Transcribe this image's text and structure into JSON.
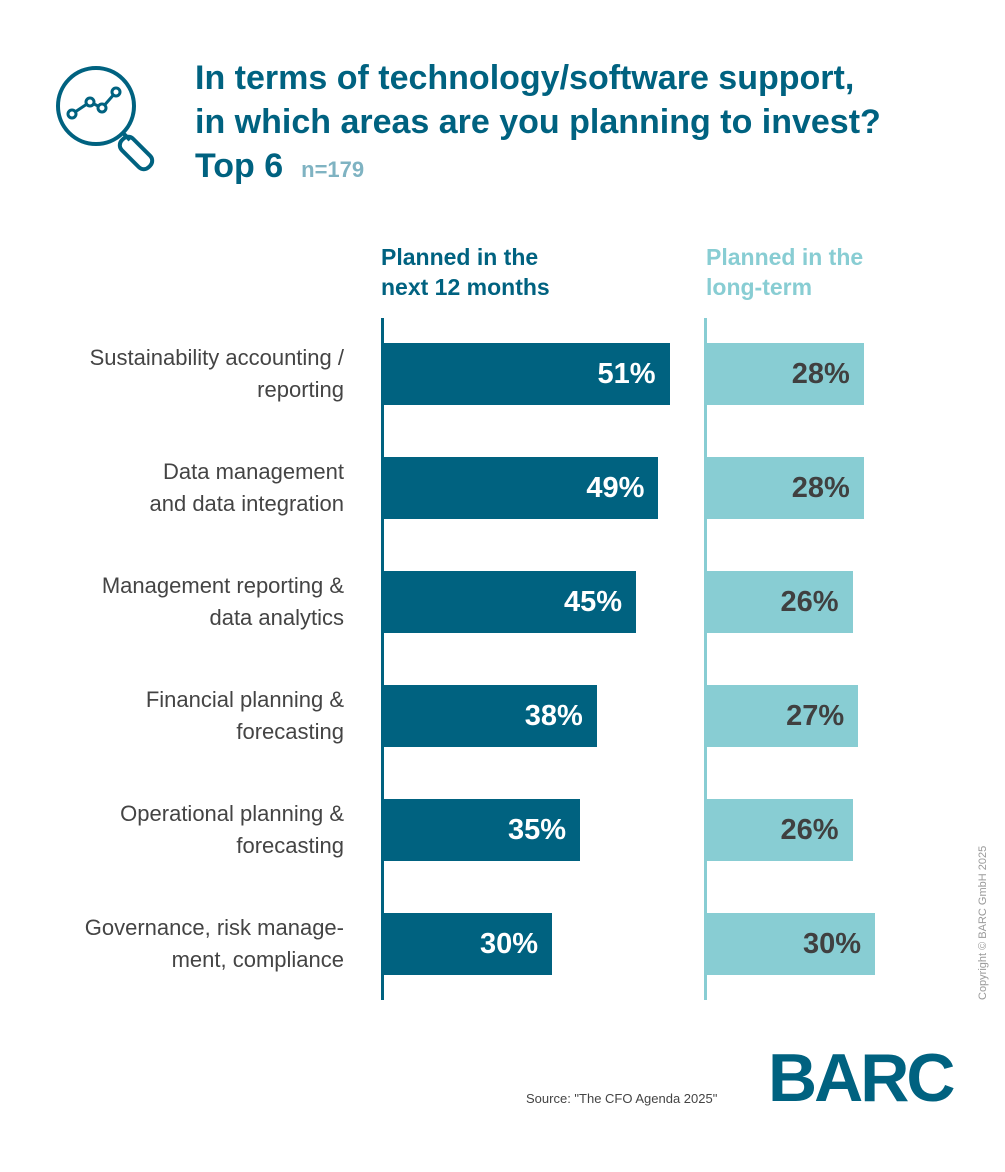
{
  "title": {
    "line1": "In terms of technology/software support,",
    "line2": "in which areas are you planning to invest?",
    "line3": "Top 6",
    "sample": "n=179"
  },
  "icon": "magnifier-trend-icon",
  "colors": {
    "primary": "#006280",
    "secondary": "#88cdd3"
  },
  "chart_data": {
    "type": "bar",
    "orientation": "horizontal",
    "categories": [
      "Sustainability accounting /\nreporting",
      "Data management\nand data integration",
      "Management reporting &\ndata analytics",
      "Financial planning &\nforecasting",
      "Operational planning &\nforecasting",
      "Governance, risk manage-\nment, compliance"
    ],
    "series": [
      {
        "name": "Planned in the\nnext 12 months",
        "values": [
          51,
          49,
          45,
          38,
          35,
          30
        ],
        "labels": [
          "51%",
          "49%",
          "45%",
          "38%",
          "35%",
          "30%"
        ]
      },
      {
        "name": "Planned in the\nlong-term",
        "values": [
          28,
          28,
          26,
          27,
          26,
          30
        ],
        "labels": [
          "28%",
          "28%",
          "26%",
          "27%",
          "26%",
          "30%"
        ]
      }
    ],
    "unit": "%",
    "grid": false
  },
  "source": "Source: \"The CFO Agenda 2025\"",
  "logo": "BARC",
  "copyright": "Copyright © BARC GmbH 2025"
}
